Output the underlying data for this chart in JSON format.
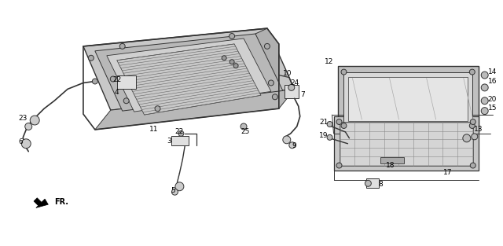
{
  "background_color": "#ffffff",
  "fig_width": 6.4,
  "fig_height": 3.13,
  "dpi": 100,
  "lc": "#333333",
  "gray_fill": "#d8d8d8",
  "dark_gray": "#aaaaaa",
  "mid_gray": "#bbbbbb",
  "light_gray": "#e8e8e8"
}
